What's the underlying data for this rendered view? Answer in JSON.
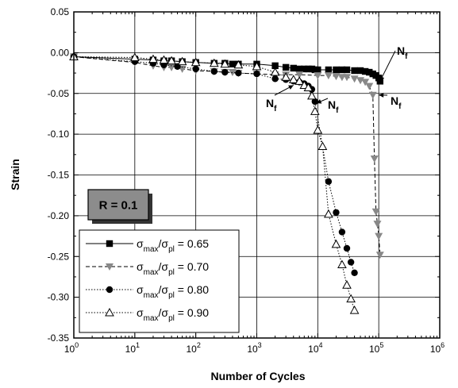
{
  "chart_data": {
    "type": "scatter",
    "xlabel": "Number of Cycles",
    "ylabel": "Strain",
    "xscale": "log",
    "xlim": [
      1,
      1000000
    ],
    "ylim": [
      -0.35,
      0.05
    ],
    "x_ticks": [
      {
        "value": 1,
        "base": "10",
        "exp": "0"
      },
      {
        "value": 10,
        "base": "10",
        "exp": "1"
      },
      {
        "value": 100,
        "base": "10",
        "exp": "2"
      },
      {
        "value": 1000,
        "base": "10",
        "exp": "3"
      },
      {
        "value": 10000,
        "base": "10",
        "exp": "4"
      },
      {
        "value": 100000,
        "base": "10",
        "exp": "5"
      },
      {
        "value": 1000000,
        "base": "10",
        "exp": "6"
      }
    ],
    "y_ticks": [
      "0.05",
      "0.00",
      "-0.05",
      "-0.10",
      "-0.15",
      "-0.20",
      "-0.25",
      "-0.30",
      "-0.35"
    ],
    "grid": true,
    "ratio_label": "R = 0.1",
    "failure_label": {
      "main": "N",
      "sub": "f"
    },
    "legend_placement": "bottom-left",
    "series": [
      {
        "label_parts": [
          "σ",
          "max",
          "/σ",
          "pl",
          " = 0.65"
        ],
        "marker": "square-filled",
        "line": "solid",
        "color": "#000000",
        "points": [
          [
            1,
            -0.005
          ],
          [
            10,
            -0.008
          ],
          [
            20,
            -0.009
          ],
          [
            30,
            -0.01
          ],
          [
            40,
            -0.01
          ],
          [
            60,
            -0.011
          ],
          [
            100,
            -0.012
          ],
          [
            200,
            -0.013
          ],
          [
            300,
            -0.013
          ],
          [
            400,
            -0.014
          ],
          [
            500,
            -0.014
          ],
          [
            1000,
            -0.014
          ],
          [
            2000,
            -0.016
          ],
          [
            3000,
            -0.018
          ],
          [
            4000,
            -0.019
          ],
          [
            5000,
            -0.02
          ],
          [
            6000,
            -0.02
          ],
          [
            7000,
            -0.02
          ],
          [
            8000,
            -0.02
          ],
          [
            9000,
            -0.021
          ],
          [
            10000,
            -0.021
          ],
          [
            15000,
            -0.021
          ],
          [
            20000,
            -0.021
          ],
          [
            25000,
            -0.021
          ],
          [
            30000,
            -0.021
          ],
          [
            40000,
            -0.022
          ],
          [
            50000,
            -0.022
          ],
          [
            60000,
            -0.023
          ],
          [
            70000,
            -0.024
          ],
          [
            80000,
            -0.026
          ],
          [
            90000,
            -0.028
          ],
          [
            100000,
            -0.031
          ],
          [
            105000,
            -0.035
          ]
        ]
      },
      {
        "label_parts": [
          "σ",
          "max",
          "/σ",
          "pl",
          " = 0.70"
        ],
        "marker": "triangle-down-filled",
        "line": "dashed",
        "color": "#888888",
        "points": [
          [
            1,
            -0.005
          ],
          [
            10,
            -0.012
          ],
          [
            20,
            -0.016
          ],
          [
            30,
            -0.018
          ],
          [
            40,
            -0.018
          ],
          [
            60,
            -0.02
          ],
          [
            100,
            -0.022
          ],
          [
            200,
            -0.023
          ],
          [
            300,
            -0.024
          ],
          [
            400,
            -0.024
          ],
          [
            500,
            -0.025
          ],
          [
            1000,
            -0.026
          ],
          [
            2000,
            -0.027
          ],
          [
            3000,
            -0.027
          ],
          [
            5000,
            -0.027
          ],
          [
            10000,
            -0.028
          ],
          [
            15000,
            -0.028
          ],
          [
            20000,
            -0.029
          ],
          [
            25000,
            -0.03
          ],
          [
            30000,
            -0.03
          ],
          [
            40000,
            -0.032
          ],
          [
            50000,
            -0.034
          ],
          [
            60000,
            -0.036
          ],
          [
            70000,
            -0.041
          ],
          [
            80000,
            -0.052
          ],
          [
            85000,
            -0.13
          ],
          [
            90000,
            -0.195
          ],
          [
            95000,
            -0.21
          ],
          [
            100000,
            -0.225
          ],
          [
            105000,
            -0.248
          ]
        ]
      },
      {
        "label_parts": [
          "σ",
          "max",
          "/σ",
          "pl",
          " = 0.80"
        ],
        "marker": "circle-filled",
        "line": "dotted",
        "color": "#000000",
        "points": [
          [
            1,
            -0.005
          ],
          [
            10,
            -0.011
          ],
          [
            20,
            -0.013
          ],
          [
            30,
            -0.015
          ],
          [
            50,
            -0.017
          ],
          [
            100,
            -0.02
          ],
          [
            200,
            -0.023
          ],
          [
            300,
            -0.024
          ],
          [
            500,
            -0.025
          ],
          [
            1000,
            -0.026
          ],
          [
            2000,
            -0.032
          ],
          [
            3000,
            -0.033
          ],
          [
            4000,
            -0.035
          ],
          [
            5000,
            -0.036
          ],
          [
            6000,
            -0.038
          ],
          [
            7000,
            -0.041
          ],
          [
            8000,
            -0.045
          ],
          [
            9000,
            -0.06
          ],
          [
            15000,
            -0.158
          ],
          [
            20000,
            -0.196
          ],
          [
            25000,
            -0.22
          ],
          [
            30000,
            -0.24
          ],
          [
            35000,
            -0.257
          ],
          [
            40000,
            -0.27
          ]
        ]
      },
      {
        "label_parts": [
          "σ",
          "max",
          "/σ",
          "pl",
          " = 0.90"
        ],
        "marker": "triangle-up-open",
        "line": "dotted",
        "color": "#000000",
        "points": [
          [
            1,
            -0.005
          ],
          [
            10,
            -0.006
          ],
          [
            20,
            -0.008
          ],
          [
            30,
            -0.009
          ],
          [
            40,
            -0.01
          ],
          [
            60,
            -0.011
          ],
          [
            100,
            -0.012
          ],
          [
            200,
            -0.013
          ],
          [
            300,
            -0.014
          ],
          [
            500,
            -0.015
          ],
          [
            1000,
            -0.017
          ],
          [
            2000,
            -0.024
          ],
          [
            3000,
            -0.03
          ],
          [
            4000,
            -0.033
          ],
          [
            5000,
            -0.035
          ],
          [
            6000,
            -0.04
          ],
          [
            7000,
            -0.043
          ],
          [
            8000,
            -0.053
          ],
          [
            9000,
            -0.072
          ],
          [
            10000,
            -0.095
          ],
          [
            12000,
            -0.115
          ],
          [
            15000,
            -0.198
          ],
          [
            20000,
            -0.235
          ],
          [
            25000,
            -0.26
          ],
          [
            30000,
            -0.285
          ],
          [
            35000,
            -0.302
          ],
          [
            40000,
            -0.316
          ]
        ]
      }
    ]
  }
}
